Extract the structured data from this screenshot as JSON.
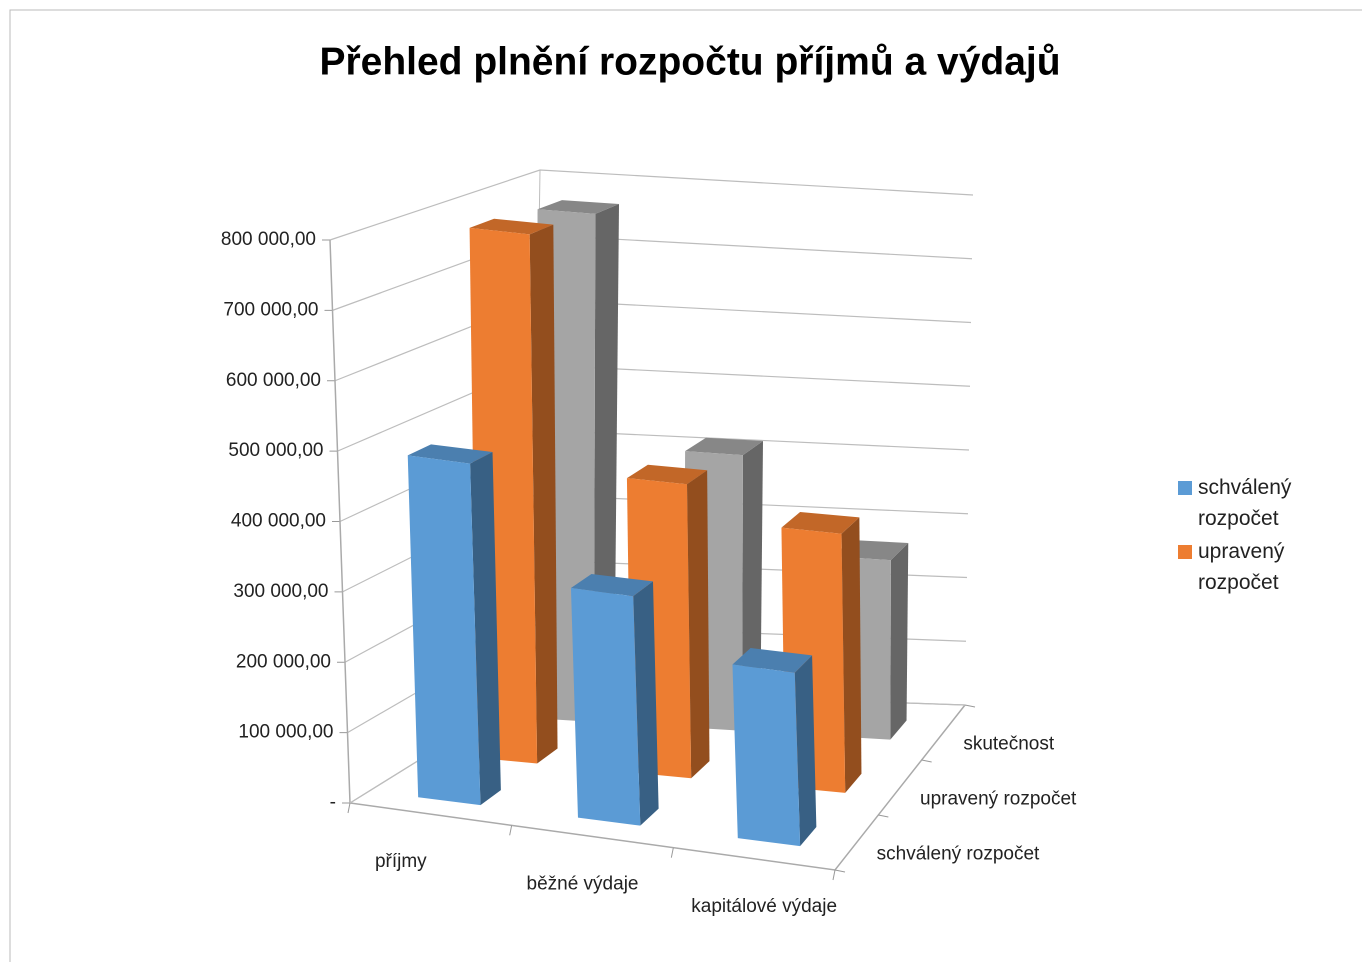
{
  "chart_data": {
    "type": "bar",
    "title": "Přehled plnění rozpočtu příjmů a výdajů",
    "categories": [
      "příjmy",
      "běžné výdaje",
      "kapitálové výdaje"
    ],
    "series": [
      {
        "name": "schválený rozpočet",
        "color": "#5b9bd5",
        "values": [
          490000,
          330000,
          250000
        ]
      },
      {
        "name": "upravený rozpočet",
        "color": "#ed7d31",
        "values": [
          780000,
          435000,
          385000
        ]
      },
      {
        "name": "skutečnost",
        "color": "#a5a5a5",
        "values": [
          770000,
          420000,
          275000
        ]
      }
    ],
    "ylim": [
      0,
      800000
    ],
    "yticks": [
      {
        "value": 0,
        "label": "-"
      },
      {
        "value": 100000,
        "label": "100 000,00"
      },
      {
        "value": 200000,
        "label": "200 000,00"
      },
      {
        "value": 300000,
        "label": "300 000,00"
      },
      {
        "value": 400000,
        "label": "400 000,00"
      },
      {
        "value": 500000,
        "label": "500 000,00"
      },
      {
        "value": 600000,
        "label": "600 000,00"
      },
      {
        "value": 700000,
        "label": "700 000,00"
      },
      {
        "value": 800000,
        "label": "800 000,00"
      }
    ],
    "grid": true,
    "legend": "right"
  }
}
